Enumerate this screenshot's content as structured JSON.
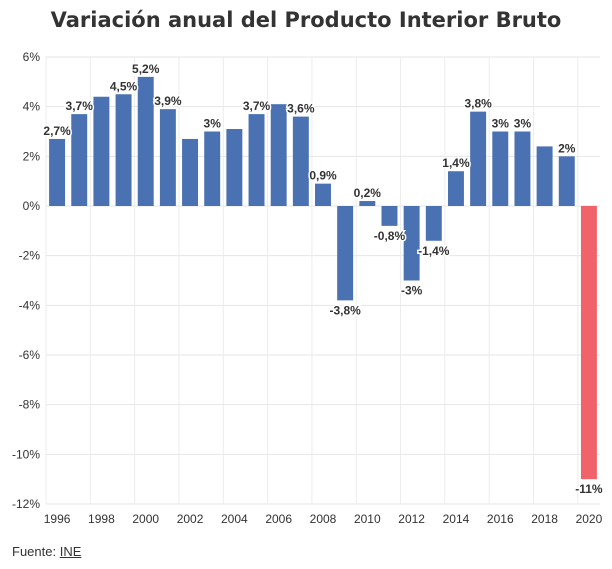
{
  "chart_data": {
    "type": "bar",
    "title": "Variación anual del Producto Interior Bruto",
    "xlabel": "",
    "ylabel": "",
    "ylim": [
      -12,
      6
    ],
    "yticks": [
      6,
      4,
      2,
      0,
      -2,
      -4,
      -6,
      -8,
      -10,
      -12
    ],
    "ytick_labels": [
      "6%",
      "4%",
      "2%",
      "0%",
      "-2%",
      "-4%",
      "-6%",
      "-8%",
      "-10%",
      "-12%"
    ],
    "categories": [
      "1996",
      "1997",
      "1998",
      "1999",
      "2000",
      "2001",
      "2002",
      "2003",
      "2004",
      "2005",
      "2006",
      "2007",
      "2008",
      "2009",
      "2010",
      "2011",
      "2012",
      "2013",
      "2014",
      "2015",
      "2016",
      "2017",
      "2018",
      "2019",
      "2020"
    ],
    "xtick_labels": [
      "1996",
      "1998",
      "2000",
      "2002",
      "2004",
      "2006",
      "2008",
      "2010",
      "2012",
      "2014",
      "2016",
      "2018",
      "2020"
    ],
    "values": [
      2.7,
      3.7,
      4.4,
      4.5,
      5.2,
      3.9,
      2.7,
      3.0,
      3.1,
      3.7,
      4.1,
      3.6,
      0.9,
      -3.8,
      0.2,
      -0.8,
      -3.0,
      -1.4,
      1.4,
      3.8,
      3.0,
      3.0,
      2.4,
      2.0,
      -11.0
    ],
    "data_labels": [
      "2,7%",
      "3,7%",
      "",
      "4,5%",
      "5,2%",
      "3,9%",
      "",
      "3%",
      "",
      "3,7%",
      "",
      "3,6%",
      "0,9%",
      "-3,8%",
      "0,2%",
      "-0,8%",
      "-3%",
      "-1,4%",
      "1,4%",
      "3,8%",
      "3%",
      "3%",
      "",
      "2%",
      "-11%"
    ],
    "colors": {
      "default": "#4a72b2",
      "highlight": "#f0636a"
    },
    "highlight_index": 24,
    "grid": true
  },
  "footer": {
    "prefix": "Fuente: ",
    "source": "INE"
  }
}
